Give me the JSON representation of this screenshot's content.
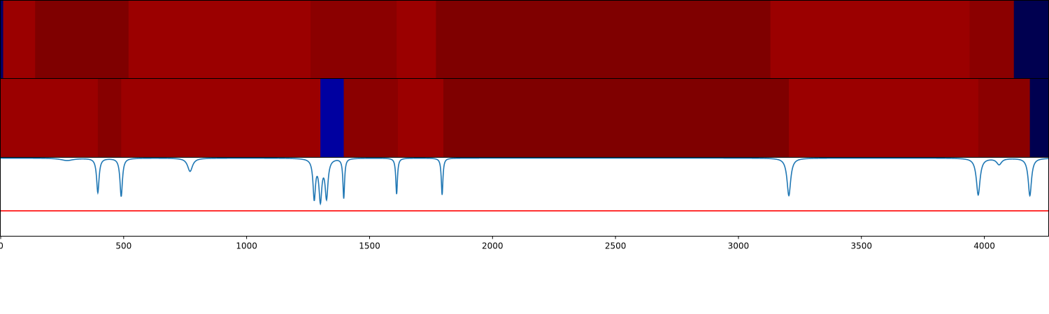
{
  "chart_data": {
    "type": "heatmap",
    "xlim": [
      0,
      4260
    ],
    "xticks": [
      {
        "value": 0,
        "label": "0"
      },
      {
        "value": 500,
        "label": "500"
      },
      {
        "value": 1000,
        "label": "1000"
      },
      {
        "value": 1500,
        "label": "1500"
      },
      {
        "value": 2000,
        "label": "2000"
      },
      {
        "value": 2500,
        "label": "2500"
      },
      {
        "value": 3000,
        "label": "3000"
      },
      {
        "value": 3500,
        "label": "3500"
      },
      {
        "value": 4000,
        "label": "4000"
      }
    ],
    "colormap": "seismic",
    "heat_strips": [
      {
        "segments": [
          {
            "start": 0,
            "end": 10,
            "color": "#000066"
          },
          {
            "start": 10,
            "end": 140,
            "color": "#9b0000"
          },
          {
            "start": 140,
            "end": 520,
            "color": "#7f0000"
          },
          {
            "start": 520,
            "end": 1260,
            "color": "#9b0000"
          },
          {
            "start": 1260,
            "end": 1610,
            "color": "#8b0000"
          },
          {
            "start": 1610,
            "end": 1770,
            "color": "#9b0000"
          },
          {
            "start": 1770,
            "end": 3130,
            "color": "#7f0000"
          },
          {
            "start": 3130,
            "end": 3940,
            "color": "#9b0000"
          },
          {
            "start": 3940,
            "end": 4120,
            "color": "#8b0000"
          },
          {
            "start": 4120,
            "end": 4260,
            "color": "#000050"
          }
        ]
      },
      {
        "segments": [
          {
            "start": 0,
            "end": 395,
            "color": "#9b0000"
          },
          {
            "start": 395,
            "end": 490,
            "color": "#870000"
          },
          {
            "start": 490,
            "end": 1300,
            "color": "#9b0000"
          },
          {
            "start": 1300,
            "end": 1395,
            "color": "#0000a0"
          },
          {
            "start": 1395,
            "end": 1615,
            "color": "#8b0000"
          },
          {
            "start": 1615,
            "end": 1800,
            "color": "#9b0000"
          },
          {
            "start": 1800,
            "end": 3205,
            "color": "#7f0000"
          },
          {
            "start": 3205,
            "end": 3975,
            "color": "#9b0000"
          },
          {
            "start": 3975,
            "end": 4185,
            "color": "#8b0000"
          },
          {
            "start": 4185,
            "end": 4260,
            "color": "#000050"
          }
        ]
      }
    ],
    "line": {
      "color": "#1f77b4",
      "ylim": [
        0,
        1
      ],
      "baseline": 0.995,
      "dips": [
        {
          "x": 270,
          "depth": 0.03,
          "width": 30
        },
        {
          "x": 395,
          "depth": 0.44,
          "width": 6
        },
        {
          "x": 490,
          "depth": 0.49,
          "width": 6
        },
        {
          "x": 770,
          "depth": 0.17,
          "width": 12
        },
        {
          "x": 1275,
          "depth": 0.5,
          "width": 6
        },
        {
          "x": 1300,
          "depth": 0.52,
          "width": 7
        },
        {
          "x": 1325,
          "depth": 0.49,
          "width": 7
        },
        {
          "x": 1395,
          "depth": 0.51,
          "width": 4
        },
        {
          "x": 1610,
          "depth": 0.46,
          "width": 4
        },
        {
          "x": 1795,
          "depth": 0.47,
          "width": 4
        },
        {
          "x": 3205,
          "depth": 0.48,
          "width": 9
        },
        {
          "x": 3975,
          "depth": 0.47,
          "width": 9
        },
        {
          "x": 4060,
          "depth": 0.08,
          "width": 12
        },
        {
          "x": 4185,
          "depth": 0.48,
          "width": 8
        }
      ]
    },
    "threshold": {
      "y": 0.32,
      "color": "#ff0000"
    },
    "grid": false,
    "legend": "none"
  }
}
